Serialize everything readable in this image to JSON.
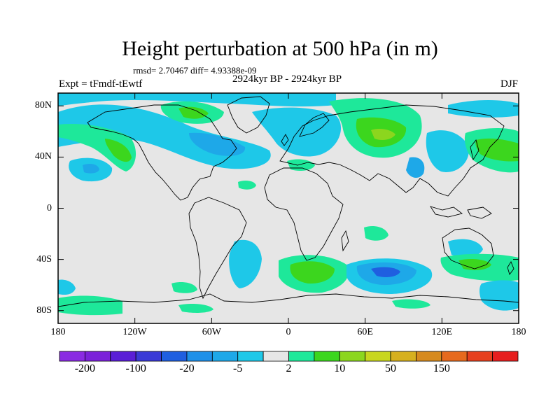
{
  "title": "Height perturbation at 500 hPa (in m)",
  "stats_text": "rmsd= 2.70467 diff= 4.93388e-09",
  "expt_text": "Expt = tFmdf-tEwtf",
  "period_text": "2924kyr BP - 2924kyr BP",
  "season_text": "DJF",
  "map": {
    "lon_range": [
      -180,
      180
    ],
    "lat_range": [
      -90,
      90
    ],
    "lat_labels": [
      {
        "lat": 80,
        "label": "80N"
      },
      {
        "lat": 40,
        "label": "40N"
      },
      {
        "lat": 0,
        "label": "0"
      },
      {
        "lat": -40,
        "label": "40S"
      },
      {
        "lat": -80,
        "label": "80S"
      }
    ],
    "lon_labels": [
      {
        "lon": -180,
        "label": "180"
      },
      {
        "lon": -120,
        "label": "120W"
      },
      {
        "lon": -60,
        "label": "60W"
      },
      {
        "lon": 0,
        "label": "0"
      },
      {
        "lon": 60,
        "label": "60E"
      },
      {
        "lon": 120,
        "label": "120E"
      },
      {
        "lon": 180,
        "label": "180"
      }
    ],
    "background_color": "#e6e6e6",
    "coastline_color": "#000000"
  },
  "colorbar": {
    "colors": [
      "#8a2be2",
      "#7b22d9",
      "#5a1ed6",
      "#3a3ad6",
      "#1f5fe0",
      "#1e90e8",
      "#1ea8e8",
      "#1ec8e8",
      "#e6e6e6",
      "#1ee89a",
      "#3cd61e",
      "#8cd61e",
      "#c8d61e",
      "#d6b01e",
      "#d68a1e",
      "#e66a1e",
      "#e6401e",
      "#e61e1e"
    ],
    "labels": [
      "-200",
      "-100",
      "-20",
      "-5",
      "2",
      "10",
      "50",
      "150"
    ]
  }
}
